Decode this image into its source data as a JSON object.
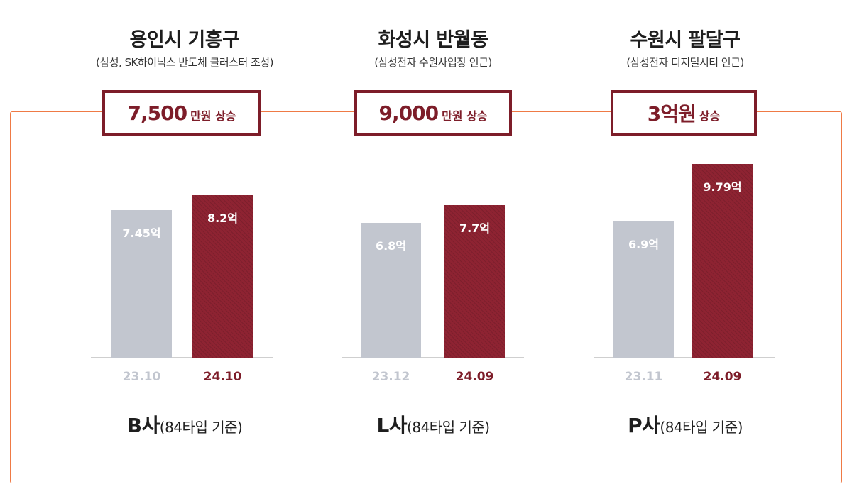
{
  "colors": {
    "frame": "#ef7a45",
    "accent": "#7d1d29",
    "before_bar": "#c2c6cf",
    "after_bar": "#8e2332"
  },
  "chart_data": [
    {
      "type": "bar",
      "title": "용인시 기흥구",
      "subtitle": "(삼성, SK하이닉스 반도체 클러스터 조성)",
      "annotation": {
        "amount": "7,500",
        "unit": "만원 상승"
      },
      "categories": [
        "23.10",
        "24.10"
      ],
      "values": [
        7.45,
        8.2
      ],
      "value_labels": [
        "7.45억",
        "8.2억"
      ],
      "unit": "억",
      "ylim": [
        0,
        10.4
      ],
      "caption": {
        "company": "B사",
        "type": "(84타입 기준)"
      }
    },
    {
      "type": "bar",
      "title": "화성시 반월동",
      "subtitle": "(삼성전자 수원사업장 인근)",
      "annotation": {
        "amount": "9,000",
        "unit": "만원 상승"
      },
      "categories": [
        "23.12",
        "24.09"
      ],
      "values": [
        6.8,
        7.7
      ],
      "value_labels": [
        "6.8억",
        "7.7억"
      ],
      "unit": "억",
      "ylim": [
        0,
        10.4
      ],
      "caption": {
        "company": "L사",
        "type": "(84타입 기준)"
      }
    },
    {
      "type": "bar",
      "title": "수원시 팔달구",
      "subtitle": "(삼성전자 디지털시티 인근)",
      "annotation": {
        "amount": "3억원",
        "unit": "상승"
      },
      "categories": [
        "23.11",
        "24.09"
      ],
      "values": [
        6.9,
        9.79
      ],
      "value_labels": [
        "6.9억",
        "9.79억"
      ],
      "unit": "억",
      "ylim": [
        0,
        10.4
      ],
      "caption": {
        "company": "P사",
        "type": "(84타입 기준)"
      }
    }
  ]
}
